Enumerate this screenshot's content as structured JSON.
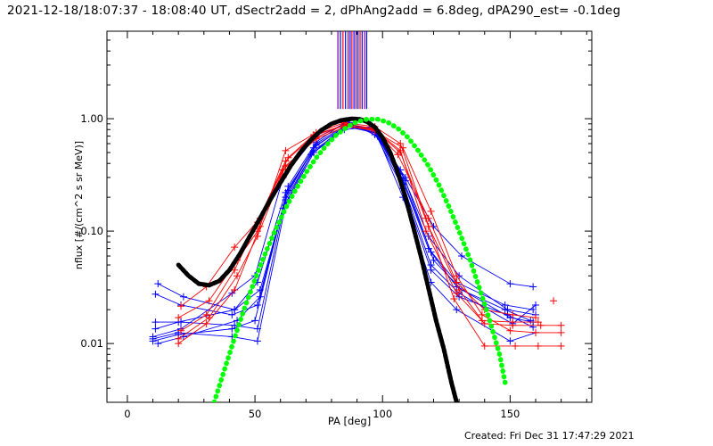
{
  "header": {
    "title": "2021-12-18/18:07:37 - 18:08:40 UT, dSectr2add = 2, dPhAng2add = 6.8deg, dPA290_est= -0.1deg"
  },
  "footer": {
    "created": "Created: Fri Dec 31 17:47:29 2021"
  },
  "chart_data": {
    "type": "line",
    "xlabel": "PA [deg]",
    "ylabel": "nflux [#/(cm^2 s sr MeV)]",
    "xlim": [
      -8,
      182
    ],
    "ylim": [
      0.003,
      6.0
    ],
    "yscale": "log",
    "x_ticks": [
      0,
      50,
      100,
      150
    ],
    "x_tick_labels": [
      "0",
      "50",
      "100",
      "150"
    ],
    "y_ticks": [
      0.01,
      0.1,
      1.0
    ],
    "y_tick_labels": [
      "0.01",
      "0.10",
      "1.00"
    ],
    "colors": {
      "blue": "#0000ff",
      "red": "#ff0000",
      "black": "#000000",
      "green": "#00ff00",
      "purple": "#7b0099"
    },
    "vertical_lines": {
      "y_from": 1.22,
      "x": [
        82.5,
        83.5,
        84.5,
        85.5,
        86.5,
        87.3,
        88.0,
        88.8,
        89.6,
        90.4,
        91.2,
        92.0,
        93.0,
        93.8
      ],
      "colors": [
        "#7b0099",
        "#0000ff",
        "#ff0000",
        "#0000ff",
        "#7b0099",
        "#0000ff",
        "#ff0000",
        "#0000ff",
        "#7b0099",
        "#0000ff",
        "#ff0000",
        "#0000ff",
        "#7b0099",
        "#0000ff"
      ]
    },
    "series": [
      {
        "color": "#0000ff",
        "x": [
          10,
          20,
          41,
          51,
          62,
          73,
          86,
          97,
          109,
          120,
          131,
          148,
          158
        ],
        "y": [
          0.011,
          0.0125,
          0.0115,
          0.0105,
          0.17,
          0.5,
          0.9,
          0.8,
          0.28,
          0.055,
          0.03,
          0.02,
          0.016
        ]
      },
      {
        "color": "#0000ff",
        "x": [
          11,
          21,
          42,
          51,
          62,
          73,
          86,
          97,
          108,
          119,
          130,
          149,
          159
        ],
        "y": [
          0.0155,
          0.0155,
          0.0145,
          0.0135,
          0.19,
          0.52,
          0.85,
          0.75,
          0.24,
          0.045,
          0.026,
          0.018,
          0.014
        ]
      },
      {
        "color": "#0000ff",
        "x": [
          12,
          22,
          42,
          52,
          63,
          74,
          87,
          98,
          108,
          119,
          129,
          150,
          160
        ],
        "y": [
          0.034,
          0.026,
          0.02,
          0.03,
          0.23,
          0.6,
          0.92,
          0.7,
          0.2,
          0.035,
          0.02,
          0.0105,
          0.0125
        ]
      },
      {
        "color": "#0000ff",
        "x": [
          10,
          20,
          41,
          50,
          61,
          72,
          85,
          96,
          107,
          118,
          129,
          148,
          159
        ],
        "y": [
          0.0105,
          0.012,
          0.0135,
          0.016,
          0.16,
          0.48,
          0.8,
          0.85,
          0.32,
          0.07,
          0.035,
          0.022,
          0.02
        ]
      },
      {
        "color": "#0000ff",
        "x": [
          11,
          21,
          41,
          51,
          62,
          73,
          86,
          97,
          108,
          119,
          130,
          151,
          160
        ],
        "y": [
          0.0275,
          0.022,
          0.018,
          0.022,
          0.2,
          0.55,
          0.88,
          0.78,
          0.26,
          0.05,
          0.028,
          0.015,
          0.022
        ]
      },
      {
        "color": "#0000ff",
        "x": [
          12,
          22,
          43,
          52,
          63,
          74,
          86,
          97,
          109,
          120,
          131,
          150,
          159
        ],
        "y": [
          0.01,
          0.0115,
          0.016,
          0.026,
          0.25,
          0.62,
          0.95,
          0.72,
          0.3,
          0.11,
          0.06,
          0.034,
          0.032
        ]
      },
      {
        "color": "#0000ff",
        "x": [
          10,
          21,
          41,
          50,
          61,
          73,
          85,
          96,
          107,
          118,
          130,
          149,
          160
        ],
        "y": [
          0.0115,
          0.0135,
          0.028,
          0.04,
          0.3,
          0.66,
          0.9,
          0.82,
          0.35,
          0.09,
          0.04,
          0.02,
          0.018
        ]
      },
      {
        "color": "#0000ff",
        "x": [
          11,
          20,
          42,
          51,
          62,
          74,
          86,
          97,
          108,
          119,
          129,
          150,
          159
        ],
        "y": [
          0.0135,
          0.0155,
          0.02,
          0.035,
          0.22,
          0.58,
          0.87,
          0.76,
          0.29,
          0.065,
          0.032,
          0.017,
          0.0155
        ]
      },
      {
        "color": "#ff0000",
        "x": [
          20,
          31,
          42,
          52,
          62,
          74,
          85,
          97,
          107,
          117,
          128,
          140,
          152,
          161,
          170
        ],
        "y": [
          0.01,
          0.015,
          0.03,
          0.11,
          0.52,
          0.75,
          0.92,
          0.85,
          0.6,
          0.13,
          0.025,
          0.0095,
          0.0095,
          0.0095,
          0.0095
        ]
      },
      {
        "color": "#ff0000",
        "x": [
          21,
          31,
          42,
          51,
          62,
          73,
          85,
          96,
          108,
          119,
          129,
          139,
          150,
          160,
          170
        ],
        "y": [
          0.013,
          0.018,
          0.045,
          0.12,
          0.42,
          0.7,
          0.88,
          0.8,
          0.55,
          0.15,
          0.04,
          0.018,
          0.013,
          0.0125,
          0.0125
        ]
      },
      {
        "color": "#ff0000",
        "x": [
          20,
          32,
          43,
          51,
          61,
          74,
          86,
          96,
          107,
          118,
          130,
          140,
          151,
          162,
          170
        ],
        "y": [
          0.017,
          0.024,
          0.055,
          0.1,
          0.35,
          0.68,
          0.9,
          0.82,
          0.5,
          0.11,
          0.03,
          0.015,
          0.0145,
          0.0145,
          0.0145
        ]
      },
      {
        "color": "#ff0000",
        "x": [
          21,
          31,
          42,
          52,
          63,
          73,
          85,
          97,
          106,
          118,
          129,
          140,
          151,
          160
        ],
        "y": [
          0.0215,
          0.032,
          0.072,
          0.13,
          0.45,
          0.72,
          0.87,
          0.78,
          0.48,
          0.13,
          0.035,
          0.02,
          0.018,
          0.017
        ]
      },
      {
        "color": "#ff0000",
        "x": [
          20,
          32,
          43,
          51,
          62,
          74,
          85,
          96,
          107,
          117,
          129,
          139,
          151,
          161
        ],
        "y": [
          0.011,
          0.017,
          0.04,
          0.09,
          0.38,
          0.66,
          0.84,
          0.83,
          0.52,
          0.1,
          0.028,
          0.016,
          0.0155,
          0.0155
        ]
      }
    ],
    "markers_only": [
      {
        "color": "#ff0000",
        "x": [
          167
        ],
        "y": [
          0.024
        ]
      }
    ],
    "fit_curves": [
      {
        "name_hidden": true,
        "color": "#000000",
        "style": "thick-dashed",
        "x": [
          20,
          24,
          28,
          32,
          36,
          40,
          44,
          48,
          52,
          56,
          60,
          64,
          68,
          72,
          76,
          80,
          84,
          88,
          91,
          94,
          97,
          100,
          103,
          106,
          109,
          112,
          115,
          118,
          121,
          124,
          127,
          129
        ],
        "y": [
          0.05,
          0.04,
          0.034,
          0.033,
          0.036,
          0.045,
          0.062,
          0.09,
          0.13,
          0.19,
          0.27,
          0.38,
          0.51,
          0.65,
          0.79,
          0.9,
          0.97,
          1.0,
          0.99,
          0.94,
          0.84,
          0.68,
          0.5,
          0.33,
          0.2,
          0.11,
          0.06,
          0.031,
          0.016,
          0.009,
          0.0045,
          0.003
        ]
      },
      {
        "name_hidden": true,
        "color": "#00ff00",
        "style": "thick-dotted",
        "x": [
          34,
          38,
          42,
          46,
          50,
          54,
          58,
          62,
          66,
          70,
          74,
          78,
          82,
          86,
          90,
          94,
          98,
          102,
          106,
          110,
          114,
          118,
          122,
          126,
          130,
          134,
          138,
          142,
          146,
          148
        ],
        "y": [
          0.003,
          0.0058,
          0.0112,
          0.021,
          0.037,
          0.063,
          0.102,
          0.16,
          0.235,
          0.33,
          0.45,
          0.58,
          0.72,
          0.84,
          0.94,
          0.99,
          0.99,
          0.93,
          0.82,
          0.68,
          0.52,
          0.38,
          0.26,
          0.165,
          0.1,
          0.058,
          0.031,
          0.016,
          0.0078,
          0.0045
        ]
      }
    ]
  }
}
